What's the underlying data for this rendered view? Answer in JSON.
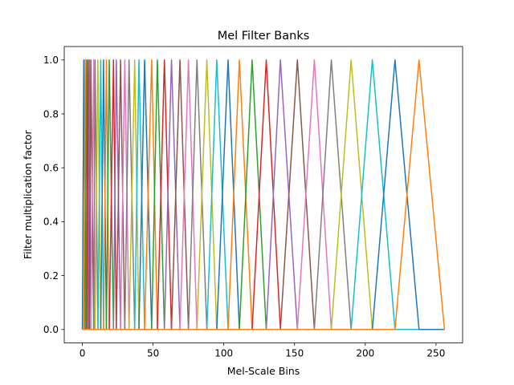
{
  "chart_data": {
    "type": "line",
    "title": "Mel Filter Banks",
    "xlabel": "Mel-Scale Bins",
    "ylabel": "Filter multiplication factor",
    "xlim": [
      -12.8,
      268.8
    ],
    "ylim": [
      -0.05,
      1.05
    ],
    "xticks": [
      0,
      50,
      100,
      150,
      200,
      250
    ],
    "yticks": [
      0.0,
      0.2,
      0.4,
      0.6,
      0.8,
      1.0
    ],
    "xtick_labels": [
      "0",
      "50",
      "100",
      "150",
      "200",
      "250"
    ],
    "ytick_labels": [
      "0.0",
      "0.2",
      "0.4",
      "0.6",
      "0.8",
      "1.0"
    ],
    "grid": false,
    "legend": "none",
    "x_max": 256,
    "filter_edges": [
      0,
      1,
      2,
      3,
      4,
      5,
      6,
      8,
      9,
      11,
      13,
      15,
      17,
      19,
      22,
      24,
      27,
      30,
      33,
      37,
      40,
      44,
      49,
      53,
      58,
      63,
      69,
      75,
      81,
      88,
      95,
      103,
      111,
      120,
      130,
      140,
      152,
      164,
      176,
      190,
      205,
      221,
      238,
      256
    ],
    "series_colors": [
      "#1f77b4",
      "#ff7f0e",
      "#2ca02c",
      "#d62728",
      "#9467bd",
      "#8c564b",
      "#e377c2",
      "#7f7f7f",
      "#bcbd22",
      "#17becf"
    ]
  }
}
